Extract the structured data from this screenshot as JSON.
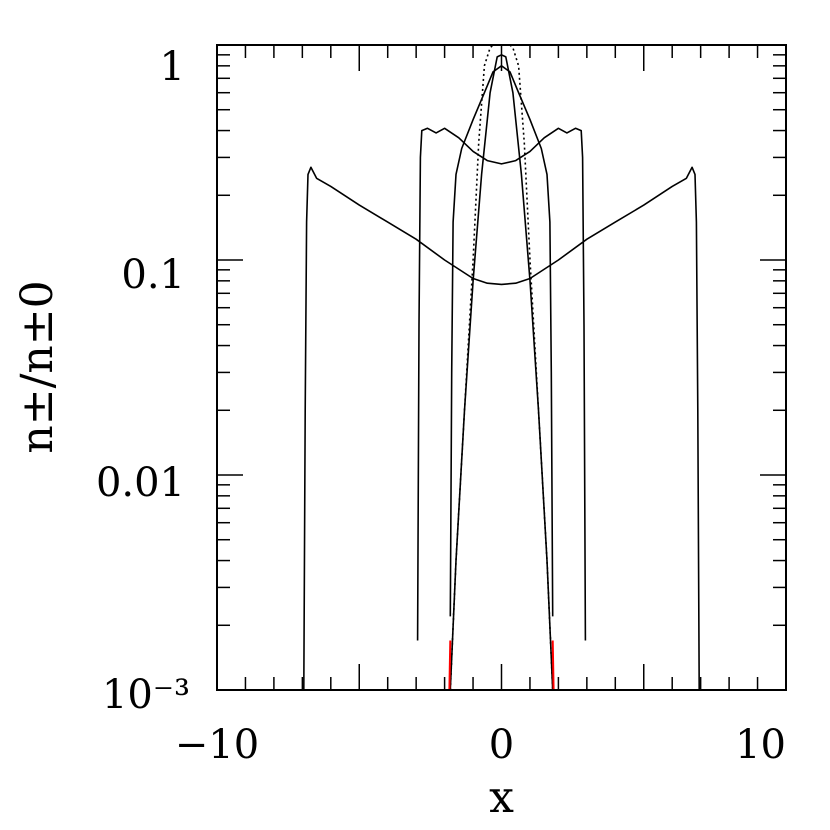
{
  "chart_data": {
    "type": "line",
    "title": "",
    "xlabel": "x",
    "ylabel": "n±/n±0",
    "xlim": [
      -10,
      10
    ],
    "ylim": [
      0.001,
      1
    ],
    "yscale": "log",
    "grid": false,
    "legend": "none",
    "x_ticks": [
      {
        "value": -10,
        "label": "−10"
      },
      {
        "value": 0,
        "label": "0"
      },
      {
        "value": 10,
        "label": "10"
      }
    ],
    "y_ticks": [
      {
        "value": 1,
        "label": "1"
      },
      {
        "value": 0.1,
        "label": "0.1"
      },
      {
        "value": 0.01,
        "label": "0.01"
      },
      {
        "value": 0.001,
        "label": "10⁻³"
      }
    ],
    "series": [
      {
        "style": "solid",
        "color": "#000000",
        "x": [
          -6.95,
          -6.9,
          -6.85,
          -6.8,
          -6.7,
          -6.5,
          -6.0,
          -5.0,
          -4.0,
          -3.0,
          -2.0,
          -1.0,
          -0.5,
          0.0,
          0.5,
          1.0,
          2.0,
          3.0,
          4.0,
          5.0,
          6.0,
          6.5,
          6.7,
          6.8,
          6.85,
          6.9,
          6.95
        ],
        "y": [
          0.001,
          0.02,
          0.15,
          0.25,
          0.27,
          0.24,
          0.22,
          0.18,
          0.15,
          0.125,
          0.1,
          0.082,
          0.078,
          0.077,
          0.078,
          0.082,
          0.1,
          0.125,
          0.15,
          0.18,
          0.22,
          0.24,
          0.27,
          0.25,
          0.15,
          0.02,
          0.001
        ]
      },
      {
        "style": "solid",
        "color": "#000000",
        "x": [
          -2.95,
          -2.9,
          -2.85,
          -2.8,
          -2.6,
          -2.3,
          -2.0,
          -1.5,
          -1.0,
          -0.5,
          0.0,
          0.5,
          1.0,
          1.5,
          2.0,
          2.3,
          2.6,
          2.8,
          2.85,
          2.9,
          2.95
        ],
        "y": [
          0.0017,
          0.05,
          0.3,
          0.4,
          0.41,
          0.39,
          0.41,
          0.37,
          0.32,
          0.29,
          0.28,
          0.29,
          0.32,
          0.37,
          0.41,
          0.39,
          0.41,
          0.4,
          0.3,
          0.05,
          0.0017
        ]
      },
      {
        "style": "solid",
        "color": "#000000",
        "x": [
          -1.8,
          -1.75,
          -1.7,
          -1.6,
          -1.4,
          -1.0,
          -0.6,
          -0.3,
          0.0,
          0.3,
          0.6,
          1.0,
          1.4,
          1.6,
          1.7,
          1.75,
          1.8
        ],
        "y": [
          0.0022,
          0.03,
          0.15,
          0.25,
          0.33,
          0.45,
          0.6,
          0.75,
          0.8,
          0.75,
          0.6,
          0.45,
          0.33,
          0.25,
          0.15,
          0.03,
          0.0022
        ]
      },
      {
        "style": "solid",
        "color": "#000000",
        "x": [
          -1.8,
          -1.6,
          -1.3,
          -1.0,
          -0.7,
          -0.4,
          -0.15,
          0.0,
          0.15,
          0.4,
          0.7,
          1.0,
          1.3,
          1.6,
          1.8
        ],
        "y": [
          0.001,
          0.004,
          0.02,
          0.08,
          0.25,
          0.6,
          0.88,
          0.9,
          0.88,
          0.6,
          0.25,
          0.08,
          0.02,
          0.004,
          0.001
        ]
      },
      {
        "style": "dotted",
        "color": "#000000",
        "x": [
          -1.8,
          -1.6,
          -1.3,
          -1.0,
          -0.8,
          -0.6,
          -0.4,
          -0.3,
          0.0,
          0.3,
          0.4,
          0.6,
          0.8,
          1.0,
          1.3,
          1.6,
          1.8
        ],
        "y": [
          0.001,
          0.004,
          0.02,
          0.1,
          0.35,
          0.8,
          0.97,
          1.0,
          1.0,
          1.0,
          0.97,
          0.8,
          0.35,
          0.1,
          0.02,
          0.004,
          0.001
        ]
      },
      {
        "style": "solid",
        "color": "#ff0000",
        "x": [
          -1.83,
          -1.8
        ],
        "y": [
          0.001,
          0.0017
        ]
      },
      {
        "style": "solid",
        "color": "#ff0000",
        "x": [
          1.8,
          1.83
        ],
        "y": [
          0.0017,
          0.001
        ]
      }
    ]
  }
}
